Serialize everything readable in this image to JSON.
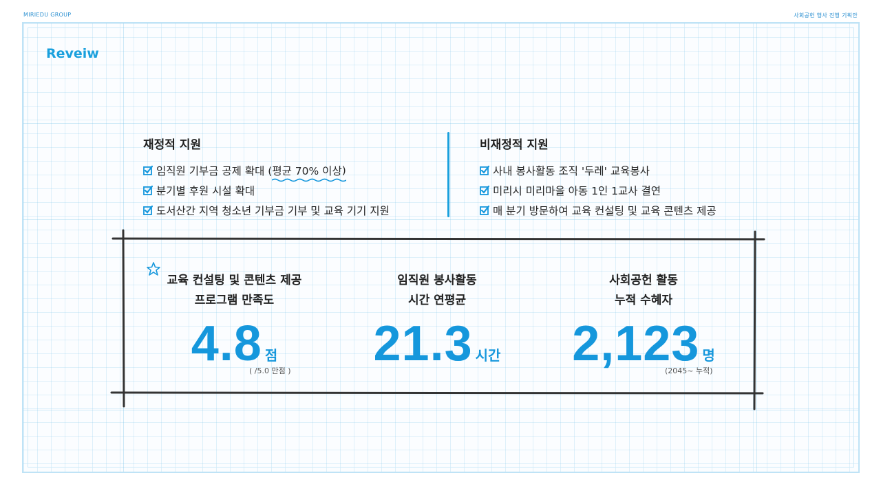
{
  "header": {
    "brand": "MIRIEDU GROUP",
    "doc_title": "사회공헌 행사 진행 기획안"
  },
  "section_title": "Reveiw",
  "financial": {
    "heading": "재정적 지원",
    "items": [
      "임직원 기부금 공제 확대 (평균 70% 이상)",
      "분기별 후원 시설 확대",
      "도서산간 지역 청소년 기부금 기부 및 교육 기기 지원"
    ],
    "item0_prefix": "임직원 기부금 공제 확대 (",
    "item0_highlight": "평균 70% 이상",
    "item0_suffix": ")"
  },
  "nonfinancial": {
    "heading": "비재정적 지원",
    "items": [
      "사내 봉사활동 조직 '두레' 교육봉사",
      "미리시 미리마을 아동 1인 1교사 결연",
      "매 분기 방문하여 교육 컨설팅 및 교육 콘텐츠 제공"
    ]
  },
  "stats": [
    {
      "label_line1": "교육 컨설팅 및 콘텐츠 제공",
      "label_line2": "프로그램 만족도",
      "value": "4.8",
      "unit": "점",
      "note": "( /5.0 만점 )"
    },
    {
      "label_line1": "임직원 봉사활동",
      "label_line2": "시간 연평균",
      "value": "21.3",
      "unit": "시간",
      "note": ""
    },
    {
      "label_line1": "사회공헌 활동",
      "label_line2": "누적 수혜자",
      "value": "2,123",
      "unit": "명",
      "note": "(2045~ 누적)"
    }
  ],
  "colors": {
    "accent": "#1597dc",
    "grid": "#78c3e8",
    "frame": "#333333"
  },
  "icons": {
    "checkbox": "checkbox-checked-icon",
    "star": "star-doodle-icon"
  }
}
